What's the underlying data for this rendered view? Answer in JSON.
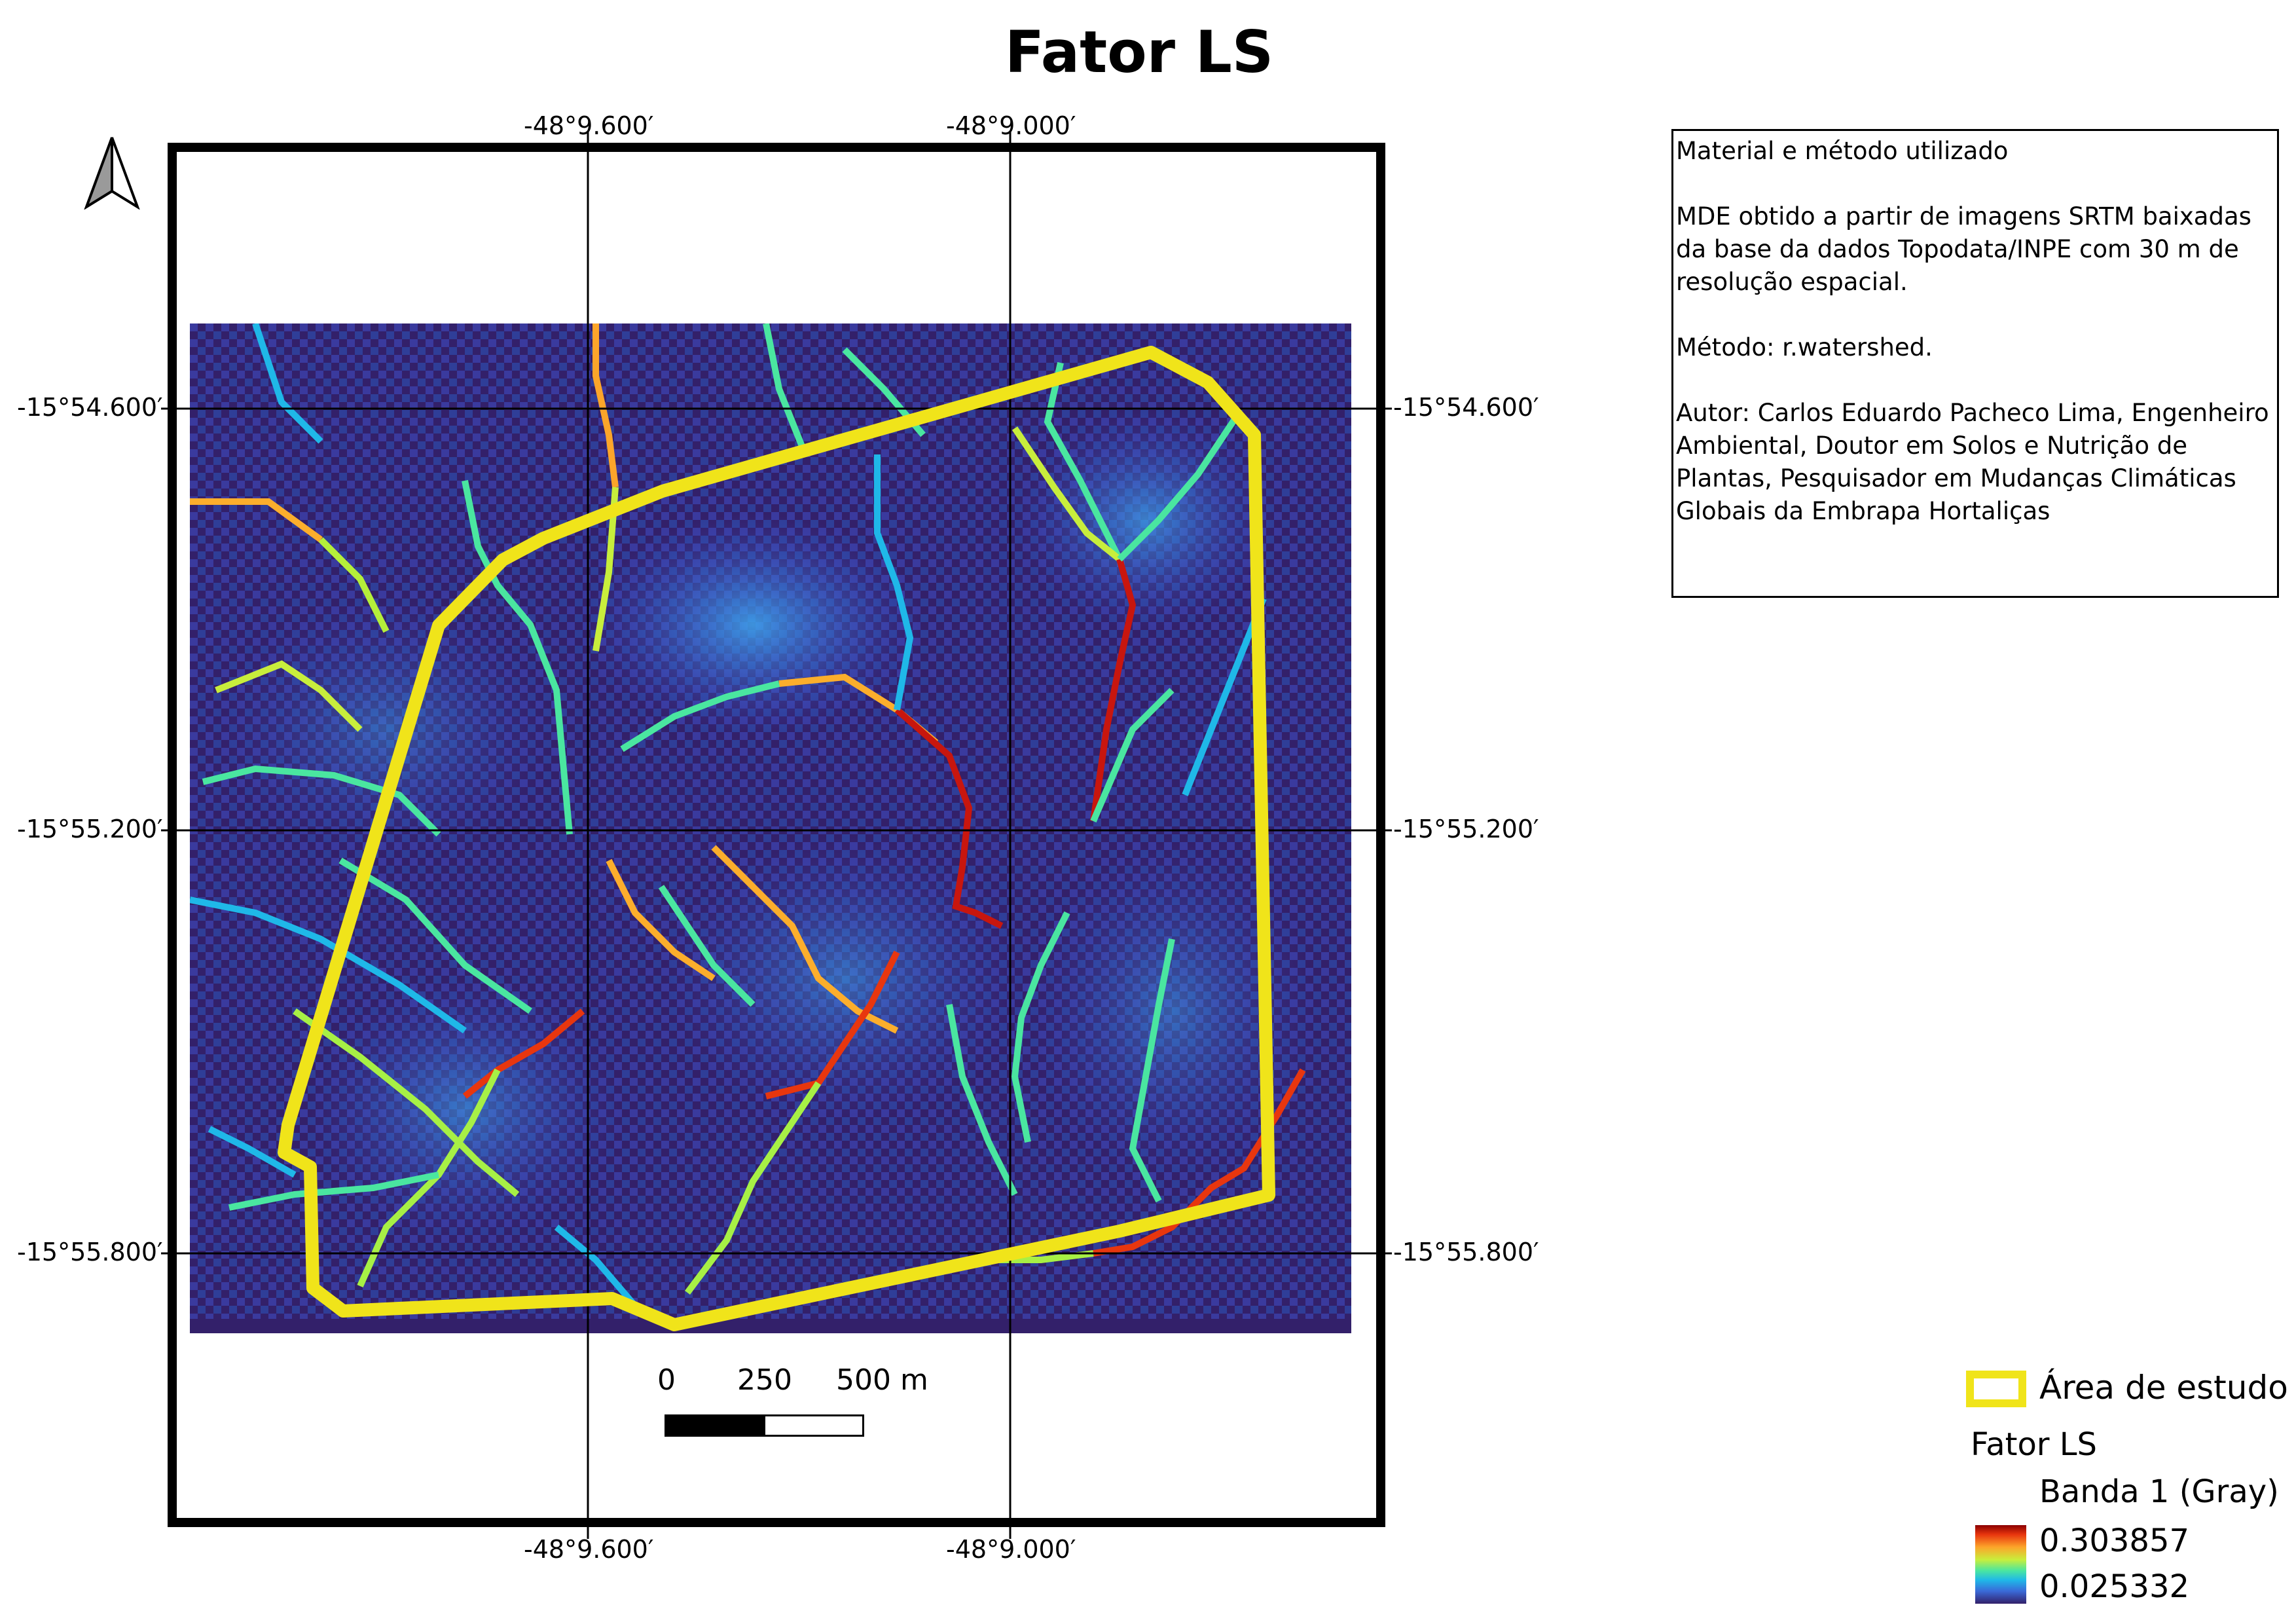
{
  "title": "Fator LS",
  "coordinates": {
    "top": [
      "-48°9.600′",
      "-48°9.000′"
    ],
    "bottom": [
      "-48°9.600′",
      "-48°9.000′"
    ],
    "left": [
      "-15°54.600′",
      "-15°55.200′",
      "-15°55.800′"
    ],
    "right": [
      "-15°54.600′",
      "-15°55.200′",
      "-15°55.800′"
    ]
  },
  "scale_bar": {
    "labels": [
      "0",
      "250",
      "500 m"
    ]
  },
  "info_box": {
    "heading": "Material e método utilizado",
    "source": "MDE obtido a partir de imagens SRTM baixadas da base da dados Topodata/INPE com 30 m de resolução espacial.",
    "method": "Método: r.watershed.",
    "author": "Autor: Carlos Eduardo Pacheco Lima, Engenheiro Ambiental, Doutor em Solos e Nutrição de Plantas, Pesquisador em Mudanças Climáticas Globais da Embrapa Hortaliças"
  },
  "legend": {
    "study_area": "Área de estudo",
    "layer": "Fator LS",
    "band": "Banda 1 (Gray)",
    "max": "0.303857",
    "min": "0.025332"
  },
  "colors": {
    "study_area_outline": "#f0e41a",
    "background_raster": "#33206a",
    "ramp_low": "#33206a",
    "ramp_high": "#8b0000"
  },
  "icons": [
    "north-arrow-icon"
  ]
}
